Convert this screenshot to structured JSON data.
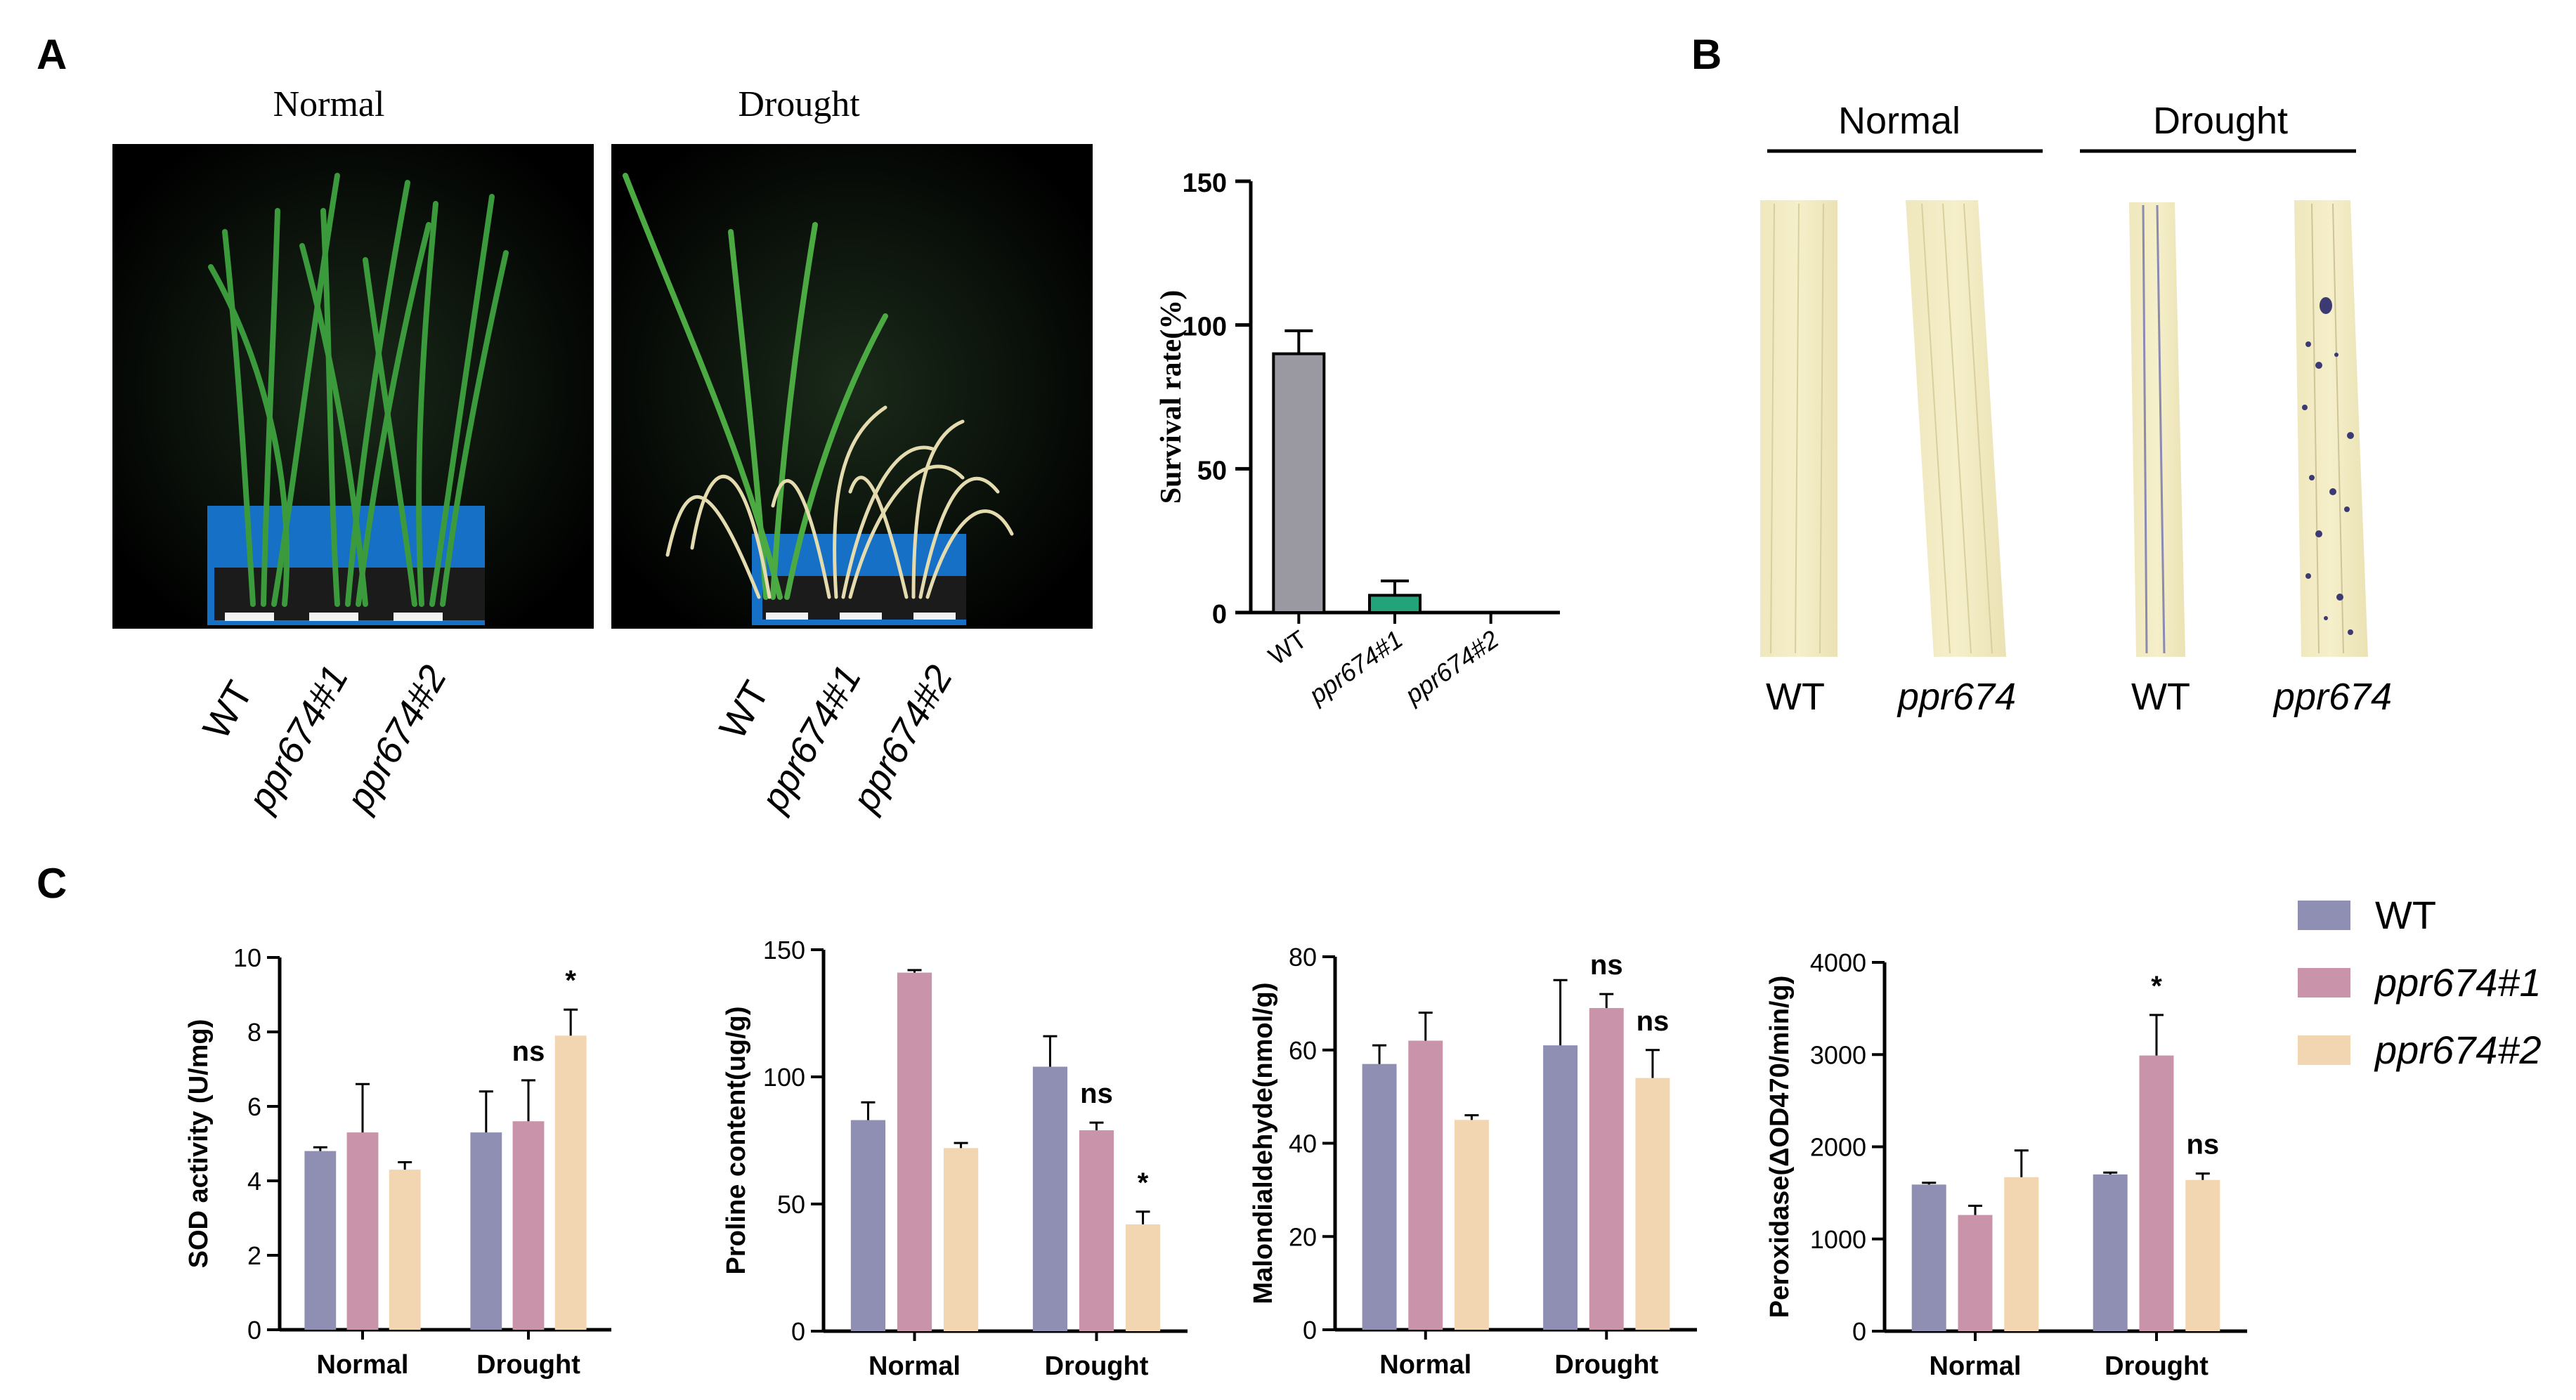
{
  "panels": {
    "a": "A",
    "b": "B",
    "c": "C"
  },
  "panel_a": {
    "photo_titles": [
      "Normal",
      "Drought"
    ],
    "photo_labels": [
      "WT",
      "ppr674#1",
      "ppr674#2"
    ]
  },
  "panel_b": {
    "group_titles": [
      "Normal",
      "Drought"
    ],
    "leaf_labels": [
      "WT",
      "ppr674",
      "WT",
      "ppr674"
    ]
  },
  "legend": {
    "items": [
      {
        "label": "WT",
        "color": "#8f8fb3"
      },
      {
        "label": "ppr674#1",
        "color": "#c993a9"
      },
      {
        "label": "ppr674#2",
        "color": "#f2d5b1"
      }
    ]
  },
  "chart_data": [
    {
      "type": "bar",
      "ylabel": "Survival rate(%)",
      "categories": [
        "WT",
        "ppr674#1",
        "ppr674#2"
      ],
      "values": [
        90,
        6,
        0
      ],
      "errors": [
        8,
        5,
        0
      ],
      "colors": [
        "#9a99a1",
        "#22a37a",
        "#22a37a"
      ],
      "ylim": [
        0,
        150
      ],
      "yticks": [
        0,
        50,
        100,
        150
      ]
    },
    {
      "type": "bar",
      "ylabel": "SOD activity (U/mg)",
      "categories": [
        "Normal",
        "Drought"
      ],
      "series": [
        {
          "values": [
            4.8,
            5.3
          ],
          "errors": [
            0.1,
            1.1
          ]
        },
        {
          "values": [
            5.3,
            5.6
          ],
          "errors": [
            1.3,
            1.1
          ]
        },
        {
          "values": [
            4.3,
            7.9
          ],
          "errors": [
            0.2,
            0.7
          ]
        }
      ],
      "annotations": {
        "Drought": [
          "",
          "ns",
          "*"
        ]
      },
      "ylim": [
        0,
        10
      ],
      "yticks": [
        0,
        2,
        4,
        6,
        8,
        10
      ]
    },
    {
      "type": "bar",
      "ylabel": "Proline content(ug/g)",
      "categories": [
        "Normal",
        "Drought"
      ],
      "series": [
        {
          "values": [
            83,
            104
          ],
          "errors": [
            7,
            12
          ]
        },
        {
          "values": [
            141,
            79
          ],
          "errors": [
            1,
            3
          ]
        },
        {
          "values": [
            72,
            42
          ],
          "errors": [
            2,
            5
          ]
        }
      ],
      "annotations": {
        "Drought": [
          "",
          "ns",
          "*"
        ]
      },
      "ylim": [
        0,
        150
      ],
      "yticks": [
        0,
        50,
        100,
        150
      ]
    },
    {
      "type": "bar",
      "ylabel": "Malondialdehyde(nmol/g)",
      "categories": [
        "Normal",
        "Drought"
      ],
      "series": [
        {
          "values": [
            57,
            61
          ],
          "errors": [
            4,
            14
          ]
        },
        {
          "values": [
            62,
            69
          ],
          "errors": [
            6,
            3
          ]
        },
        {
          "values": [
            45,
            54
          ],
          "errors": [
            1,
            6
          ]
        }
      ],
      "annotations": {
        "Drought": [
          "",
          "ns",
          "ns"
        ]
      },
      "ylim": [
        0,
        80
      ],
      "yticks": [
        0,
        20,
        40,
        60,
        80
      ]
    },
    {
      "type": "bar",
      "ylabel": "Peroxidase(ΔOD470/min/g)",
      "categories": [
        "Normal",
        "Drought"
      ],
      "series": [
        {
          "values": [
            1590,
            1700
          ],
          "errors": [
            20,
            20
          ]
        },
        {
          "values": [
            1260,
            2990
          ],
          "errors": [
            100,
            440
          ]
        },
        {
          "values": [
            1670,
            1640
          ],
          "errors": [
            290,
            70
          ]
        }
      ],
      "annotations": {
        "Drought": [
          "",
          "*",
          "ns"
        ]
      },
      "ylim": [
        0,
        4000
      ],
      "yticks": [
        0,
        1000,
        2000,
        3000,
        4000
      ]
    }
  ]
}
